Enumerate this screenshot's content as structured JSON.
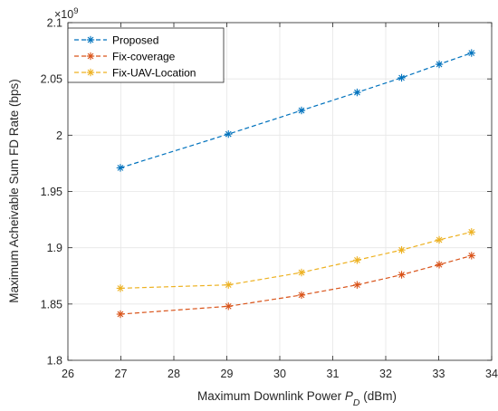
{
  "chart_data": {
    "type": "line",
    "title": "",
    "xlabel": "Maximum Downlink Power",
    "xlabel_symbol": "P",
    "xlabel_subscript": "D",
    "xlabel_unit": "(dBm)",
    "ylabel": "Maximum Acheivable Sum FD Rate (bps)",
    "y_exponent_base": "×10",
    "y_exponent_power": "9",
    "xlim": [
      26,
      34
    ],
    "ylim": [
      1.8,
      2.1
    ],
    "xticks": [
      26,
      27,
      28,
      29,
      30,
      31,
      32,
      33,
      34
    ],
    "yticks": [
      1.8,
      1.85,
      1.9,
      1.95,
      2.0,
      2.05,
      2.1
    ],
    "xtick_labels": [
      "26",
      "27",
      "28",
      "29",
      "30",
      "31",
      "32",
      "33",
      "34"
    ],
    "ytick_labels": [
      "1.8",
      "1.85",
      "1.9",
      "1.95",
      "2",
      "2.05",
      "2.1"
    ],
    "grid": true,
    "legend_position": "top-left",
    "x": [
      26.99,
      29.03,
      30.41,
      31.46,
      32.3,
      33.01,
      33.62
    ],
    "series": [
      {
        "name": "Proposed",
        "color": "#0072BD",
        "marker": "asterisk",
        "line": "dashed",
        "values": [
          1.971,
          2.001,
          2.022,
          2.038,
          2.051,
          2.063,
          2.073
        ]
      },
      {
        "name": "Fix-coverage",
        "color": "#D95319",
        "marker": "asterisk",
        "line": "dashed",
        "values": [
          1.841,
          1.848,
          1.858,
          1.867,
          1.876,
          1.885,
          1.893
        ]
      },
      {
        "name": "Fix-UAV-Location",
        "color": "#EDB120",
        "marker": "asterisk",
        "line": "dashed",
        "values": [
          1.864,
          1.867,
          1.878,
          1.889,
          1.898,
          1.907,
          1.914
        ]
      }
    ]
  }
}
